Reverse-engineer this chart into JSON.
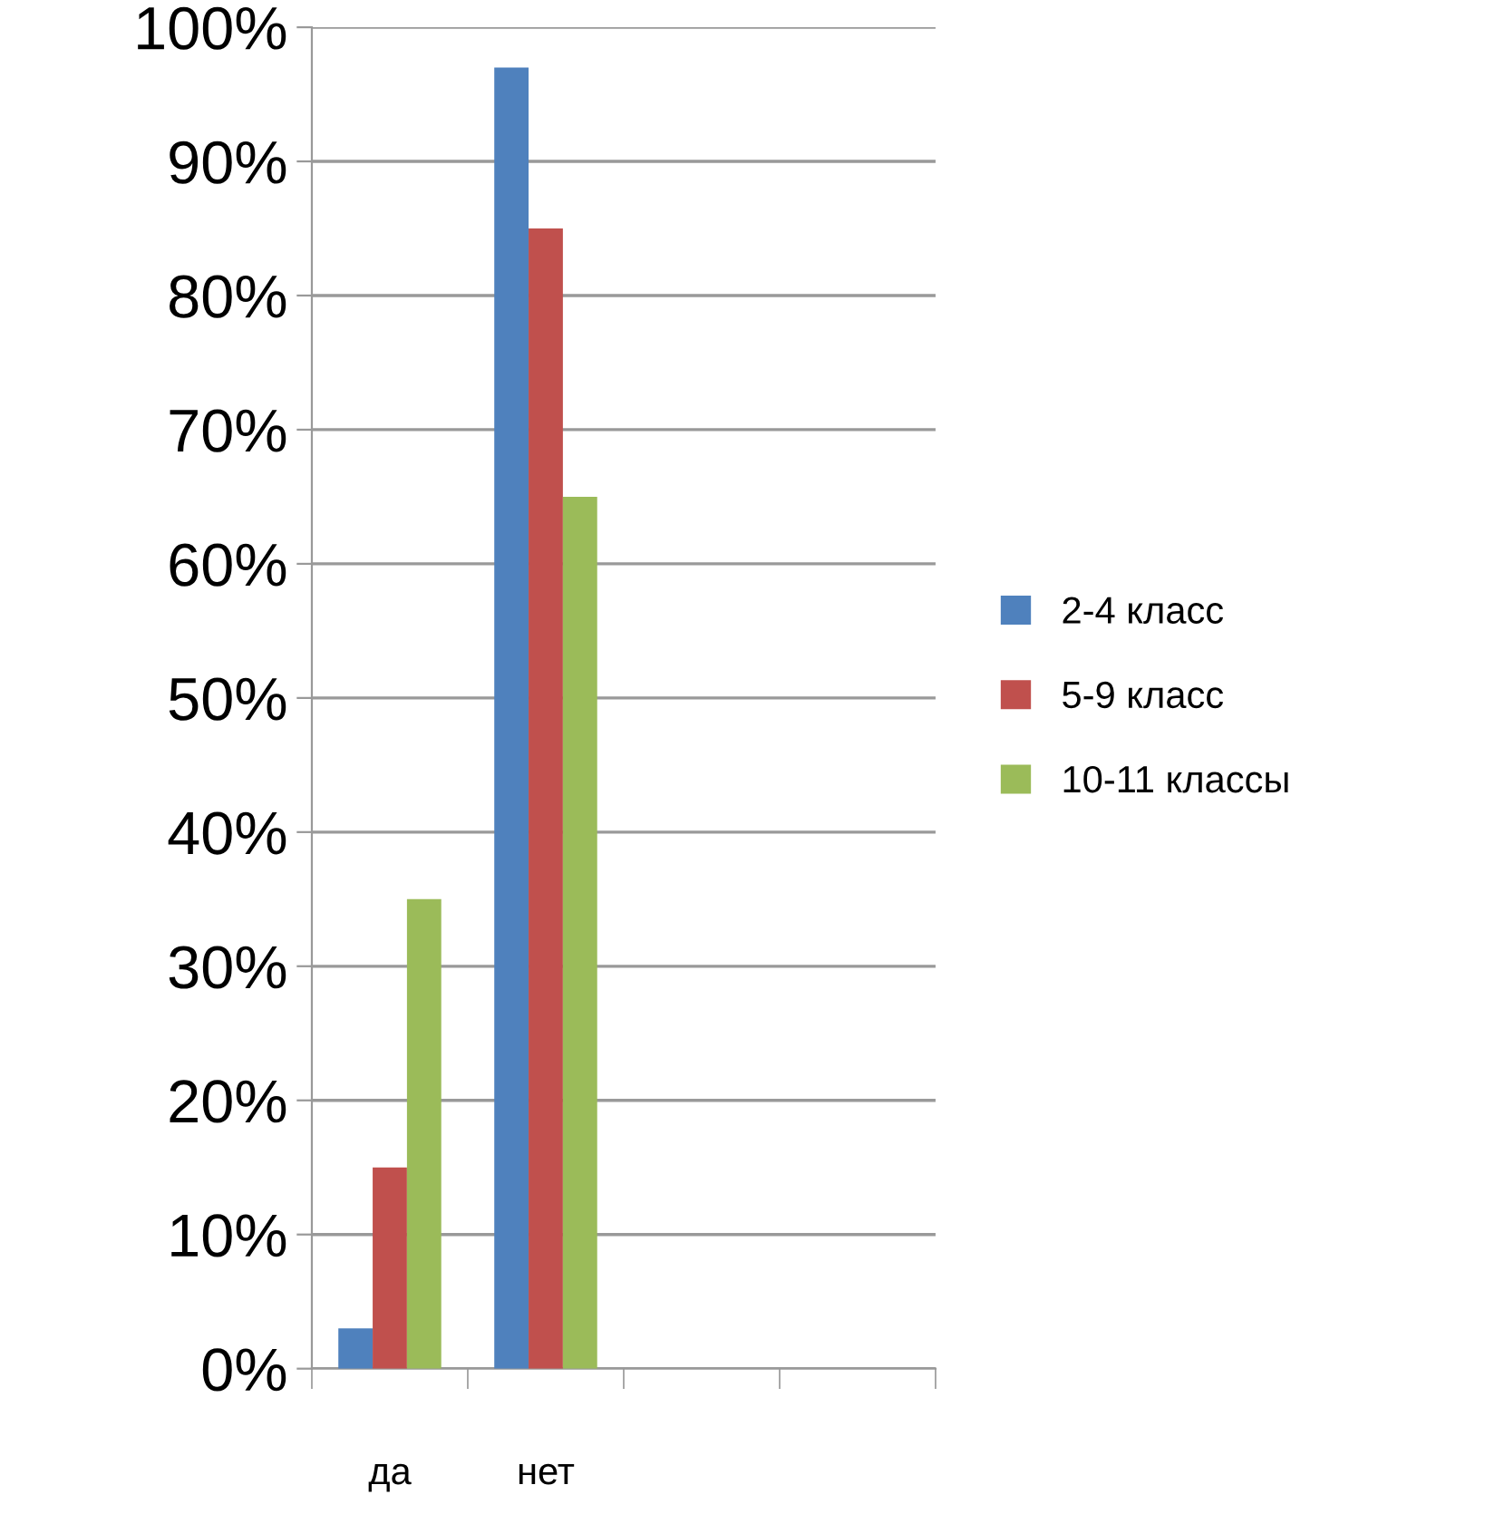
{
  "chart_data": {
    "type": "bar",
    "categories": [
      "да",
      "нет",
      null,
      null
    ],
    "series": [
      {
        "name": "2-4 класс",
        "color": "#4f81bd",
        "values": [
          3,
          97,
          null,
          null
        ]
      },
      {
        "name": "5-9 класс",
        "color": "#c0504d",
        "values": [
          15,
          85,
          null,
          null
        ]
      },
      {
        "name": "10-11 классы",
        "color": "#9bbb59",
        "values": [
          35,
          65,
          null,
          null
        ]
      }
    ],
    "ylim": [
      0,
      100
    ],
    "yticks": [
      {
        "value": 0,
        "label": "0%"
      },
      {
        "value": 10,
        "label": "10%"
      },
      {
        "value": 20,
        "label": "20%"
      },
      {
        "value": 30,
        "label": "30%"
      },
      {
        "value": 40,
        "label": "40%"
      },
      {
        "value": 50,
        "label": "50%"
      },
      {
        "value": 60,
        "label": "60%"
      },
      {
        "value": 70,
        "label": "70%"
      },
      {
        "value": 80,
        "label": "80%"
      },
      {
        "value": 90,
        "label": "90%"
      },
      {
        "value": 100,
        "label": "100%"
      }
    ],
    "grid": "y",
    "legend": "right"
  }
}
